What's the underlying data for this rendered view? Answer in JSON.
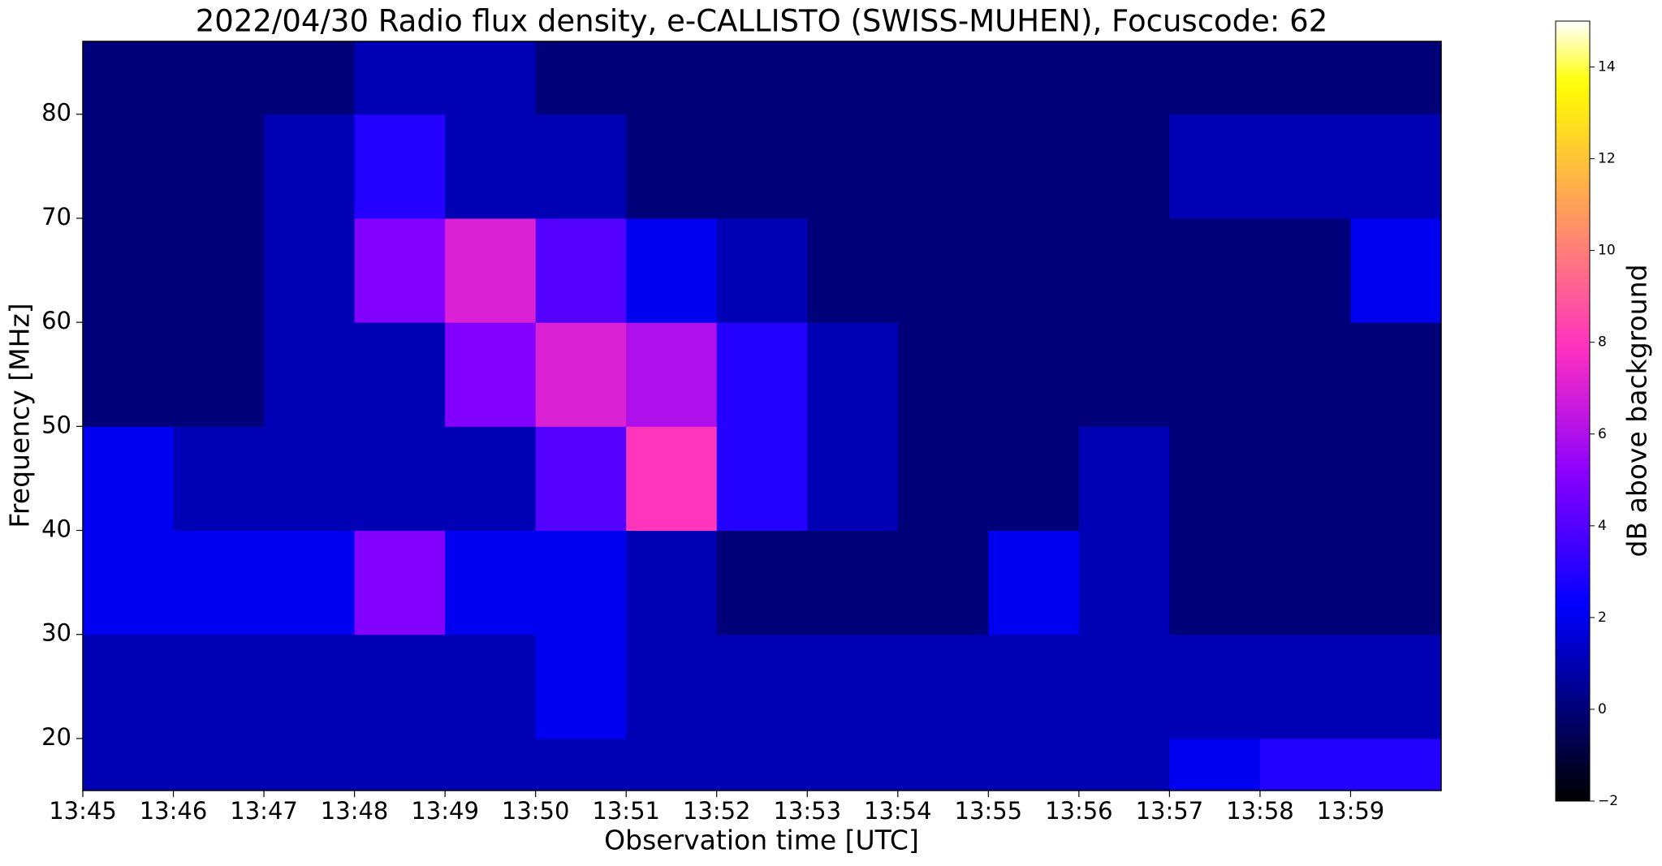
{
  "chart_data": {
    "type": "heatmap",
    "title": "2022/04/30  Radio flux density, e-CALLISTO (SWISS-MUHEN), Focuscode: 62",
    "xlabel": "Observation time [UTC]",
    "ylabel": "Frequency [MHz]",
    "colorbar_label": "dB above background",
    "colormap": "gnuplot2",
    "xbins": [
      825,
      826,
      827,
      828,
      829,
      830,
      831,
      832,
      833,
      834,
      835,
      836,
      837,
      838,
      839,
      840
    ],
    "ybins": [
      15,
      20,
      30,
      40,
      50,
      60,
      70,
      80,
      87
    ],
    "values": [
      [
        1,
        1,
        1,
        1,
        1,
        1,
        1,
        1,
        1,
        1,
        1,
        1,
        2,
        3,
        3
      ],
      [
        1,
        1,
        1,
        1,
        1,
        2,
        1,
        1,
        1,
        1,
        1,
        1,
        1,
        1,
        1
      ],
      [
        2,
        2,
        2,
        5,
        2,
        2,
        1,
        0,
        0,
        0,
        2,
        1,
        0,
        0,
        0
      ],
      [
        2,
        1,
        1,
        1,
        1,
        4,
        8,
        3,
        1,
        0,
        0,
        1,
        0,
        0,
        0
      ],
      [
        0,
        0,
        1,
        1,
        5,
        7,
        6,
        3,
        1,
        0,
        0,
        0,
        0,
        0,
        0
      ],
      [
        0,
        0,
        1,
        5,
        7,
        4,
        2,
        1,
        0,
        0,
        0,
        0,
        0,
        0,
        2
      ],
      [
        0,
        0,
        1,
        3,
        1,
        1,
        0,
        0,
        0,
        0,
        0,
        0,
        1,
        1,
        1
      ],
      [
        0,
        0,
        0,
        1,
        1,
        0,
        0,
        0,
        0,
        0,
        0,
        0,
        0,
        0,
        0
      ]
    ],
    "xlim": [
      825,
      840
    ],
    "xticks": [
      {
        "value": 825,
        "label": "13:45"
      },
      {
        "value": 826,
        "label": "13:46"
      },
      {
        "value": 827,
        "label": "13:47"
      },
      {
        "value": 828,
        "label": "13:48"
      },
      {
        "value": 829,
        "label": "13:49"
      },
      {
        "value": 830,
        "label": "13:50"
      },
      {
        "value": 831,
        "label": "13:51"
      },
      {
        "value": 832,
        "label": "13:52"
      },
      {
        "value": 833,
        "label": "13:53"
      },
      {
        "value": 834,
        "label": "13:54"
      },
      {
        "value": 835,
        "label": "13:55"
      },
      {
        "value": 836,
        "label": "13:56"
      },
      {
        "value": 837,
        "label": "13:57"
      },
      {
        "value": 838,
        "label": "13:58"
      },
      {
        "value": 839,
        "label": "13:59"
      }
    ],
    "ylim": [
      15,
      87
    ],
    "yticks": [
      20,
      30,
      40,
      50,
      60,
      70,
      80
    ],
    "clim": [
      -2,
      15
    ],
    "cticks": [
      {
        "value": -2,
        "label": "−2"
      },
      0,
      2,
      4,
      6,
      8,
      10,
      12,
      14
    ]
  }
}
